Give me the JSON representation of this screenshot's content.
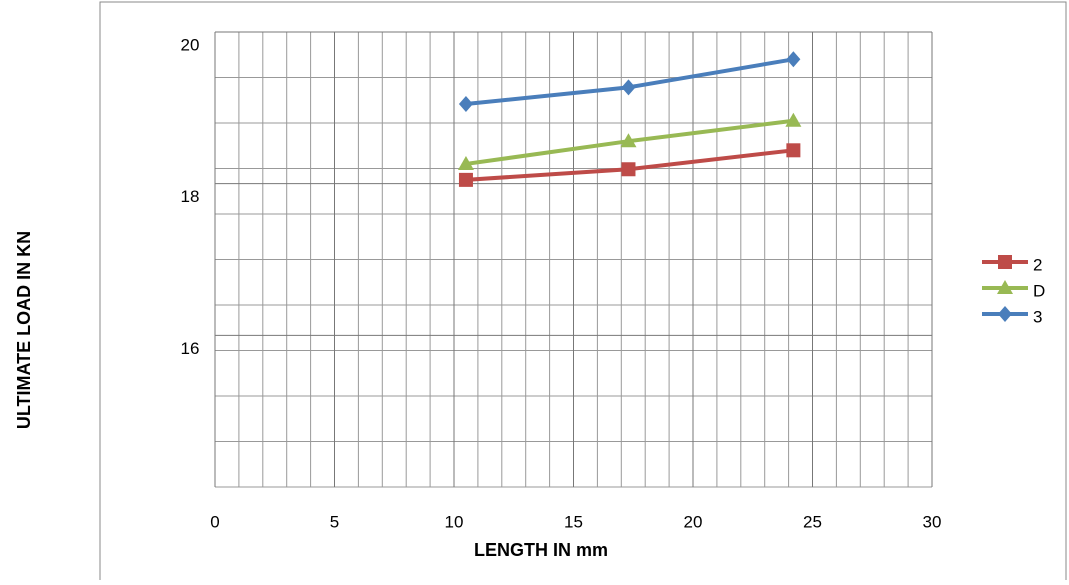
{
  "chart_data": {
    "type": "line",
    "x_label": "LENGTH IN mm",
    "y_label": "ULTIMATE LOAD IN KN",
    "x": [
      10.5,
      17.3,
      24.2
    ],
    "xlim": [
      0,
      30
    ],
    "xticks": [
      0,
      5,
      10,
      15,
      20,
      25,
      30
    ],
    "ylim": [
      14,
      20
    ],
    "yticks": [
      16,
      18,
      20
    ],
    "grid": true,
    "legend": "right",
    "series": [
      {
        "name": "2",
        "color": "#be4b48",
        "marker": "square",
        "values": [
          18.05,
          18.19,
          18.44
        ]
      },
      {
        "name": "D",
        "color": "#98b954",
        "marker": "triangle",
        "values": [
          18.26,
          18.56,
          18.83
        ]
      },
      {
        "name": "3",
        "color": "#4a7ebb",
        "marker": "diamond",
        "values": [
          19.05,
          19.27,
          19.64
        ]
      }
    ]
  }
}
